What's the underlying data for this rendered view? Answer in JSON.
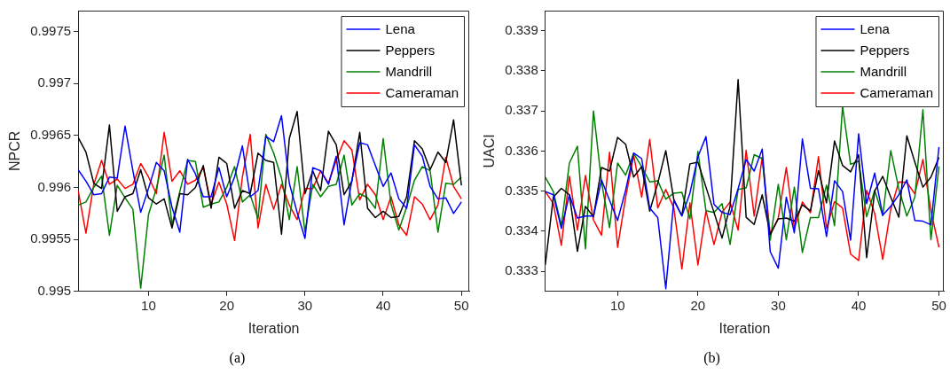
{
  "chart_data": [
    {
      "type": "line",
      "xlabel": "Iteration",
      "ylabel": "NPCR",
      "annotations": [
        "(a)"
      ],
      "legend": "top right",
      "grid": false,
      "x": [
        1,
        2,
        3,
        4,
        5,
        6,
        7,
        8,
        9,
        10,
        11,
        12,
        13,
        14,
        15,
        16,
        17,
        18,
        19,
        20,
        21,
        22,
        23,
        24,
        25,
        26,
        27,
        28,
        29,
        30,
        31,
        32,
        33,
        34,
        35,
        36,
        37,
        38,
        39,
        40,
        41,
        42,
        43,
        44,
        45,
        46,
        47,
        48,
        49,
        50
      ],
      "xlim": [
        1,
        51
      ],
      "xticks": [
        10,
        20,
        30,
        40,
        50
      ],
      "ylim": [
        0.995,
        0.9977
      ],
      "yticks": [
        0.995,
        0.9955,
        0.996,
        0.9965,
        0.997,
        0.9975
      ],
      "series": [
        {
          "name": "Lena",
          "color": "#0000ff",
          "values": [
            0.99617,
            0.99606,
            0.99593,
            0.99594,
            0.9961,
            0.99609,
            0.99659,
            0.99616,
            0.99576,
            0.99599,
            0.99624,
            0.99616,
            0.99581,
            0.99557,
            0.99627,
            0.99613,
            0.99591,
            0.99591,
            0.99619,
            0.99591,
            0.9961,
            0.9964,
            0.99591,
            0.99597,
            0.99649,
            0.99644,
            0.99669,
            0.99604,
            0.99576,
            0.99551,
            0.99619,
            0.99616,
            0.99603,
            0.9963,
            0.99564,
            0.99607,
            0.99643,
            0.99641,
            0.99621,
            0.99601,
            0.99614,
            0.99589,
            0.9958,
            0.99641,
            0.9963,
            0.99601,
            0.99589,
            0.9959,
            0.99575,
            0.99586
          ]
        },
        {
          "name": "Peppers",
          "color": "#000000",
          "values": [
            0.99648,
            0.99634,
            0.99604,
            0.99599,
            0.9966,
            0.99577,
            0.99591,
            0.99594,
            0.99617,
            0.9959,
            0.99584,
            0.99589,
            0.99561,
            0.99594,
            0.99593,
            0.996,
            0.99621,
            0.9958,
            0.99629,
            0.99623,
            0.9958,
            0.99597,
            0.99594,
            0.99633,
            0.99626,
            0.99624,
            0.99555,
            0.99647,
            0.99673,
            0.99594,
            0.99616,
            0.99597,
            0.99654,
            0.99641,
            0.99593,
            0.99606,
            0.99653,
            0.9958,
            0.99571,
            0.99577,
            0.99571,
            0.99572,
            0.99591,
            0.99645,
            0.99637,
            0.99617,
            0.99634,
            0.99624,
            0.99665,
            0.99602
          ]
        },
        {
          "name": "Mandrill",
          "color": "#008000",
          "values": [
            0.99583,
            0.99586,
            0.996,
            0.99611,
            0.99554,
            0.99602,
            0.9959,
            0.99579,
            0.99503,
            0.99574,
            0.99599,
            0.99631,
            0.99564,
            0.99596,
            0.99626,
            0.99625,
            0.99581,
            0.99584,
            0.99586,
            0.996,
            0.9962,
            0.99586,
            0.99593,
            0.9957,
            0.99651,
            0.99633,
            0.99609,
            0.99569,
            0.9962,
            0.99557,
            0.99603,
            0.99591,
            0.99601,
            0.99603,
            0.99631,
            0.99583,
            0.99594,
            0.9959,
            0.9958,
            0.99647,
            0.99584,
            0.99559,
            0.99581,
            0.99607,
            0.9962,
            0.99616,
            0.99557,
            0.99604,
            0.99603,
            0.9961
          ]
        },
        {
          "name": "Cameraman",
          "color": "#ff0000",
          "values": [
            0.99597,
            0.99556,
            0.99603,
            0.99626,
            0.99603,
            0.99608,
            0.99599,
            0.99603,
            0.99623,
            0.9961,
            0.99594,
            0.99653,
            0.99606,
            0.99616,
            0.99603,
            0.99607,
            0.99619,
            0.99584,
            0.99605,
            0.99584,
            0.99549,
            0.9961,
            0.99651,
            0.99561,
            0.99603,
            0.99579,
            0.99603,
            0.99583,
            0.99569,
            0.99599,
            0.99599,
            0.99616,
            0.99604,
            0.99626,
            0.99645,
            0.99636,
            0.99588,
            0.99603,
            0.99593,
            0.99569,
            0.99591,
            0.99564,
            0.99554,
            0.99591,
            0.99584,
            0.99569,
            0.99583,
            0.99629,
            0.99601,
            0.99589
          ]
        }
      ]
    },
    {
      "type": "line",
      "xlabel": "Iteration",
      "ylabel": "UACI",
      "annotations": [
        "(b)"
      ],
      "legend": "top right",
      "grid": false,
      "x": [
        1,
        2,
        3,
        4,
        5,
        6,
        7,
        8,
        9,
        10,
        11,
        12,
        13,
        14,
        15,
        16,
        17,
        18,
        19,
        20,
        21,
        22,
        23,
        24,
        25,
        26,
        27,
        28,
        29,
        30,
        31,
        32,
        33,
        34,
        35,
        36,
        37,
        38,
        39,
        40,
        41,
        42,
        43,
        44,
        45,
        46,
        47,
        48,
        49,
        50
      ],
      "xlim": [
        1,
        50.6
      ],
      "xticks": [
        10,
        20,
        30,
        40,
        50
      ],
      "ylim": [
        0.3325,
        0.3395
      ],
      "yticks": [
        0.333,
        0.334,
        0.335,
        0.336,
        0.337,
        0.338,
        0.339
      ],
      "series": [
        {
          "name": "Lena",
          "color": "#0000ff",
          "values": [
            0.33499,
            0.33491,
            0.33407,
            0.33491,
            0.33433,
            0.33438,
            0.33438,
            0.33528,
            0.33477,
            0.33427,
            0.33502,
            0.33595,
            0.33581,
            0.33458,
            0.33434,
            0.33257,
            0.33477,
            0.33438,
            0.33495,
            0.33586,
            0.33636,
            0.33467,
            0.33447,
            0.33442,
            0.33506,
            0.33579,
            0.3355,
            0.33605,
            0.33349,
            0.33308,
            0.33485,
            0.33396,
            0.3363,
            0.33507,
            0.33506,
            0.33387,
            0.33526,
            0.33499,
            0.33378,
            0.33643,
            0.33469,
            0.33545,
            0.3344,
            0.33462,
            0.33491,
            0.33528,
            0.33427,
            0.33425,
            0.33416,
            0.3361
          ]
        },
        {
          "name": "Peppers",
          "color": "#000000",
          "values": [
            0.33316,
            0.33485,
            0.33507,
            0.33491,
            0.3335,
            0.33462,
            0.33436,
            0.33559,
            0.3355,
            0.33634,
            0.33617,
            0.33535,
            0.33561,
            0.3345,
            0.3352,
            0.33601,
            0.33479,
            0.33439,
            0.33568,
            0.33572,
            0.3351,
            0.33447,
            0.33383,
            0.33462,
            0.33778,
            0.33435,
            0.33417,
            0.33491,
            0.33392,
            0.33431,
            0.33433,
            0.33425,
            0.33466,
            0.33451,
            0.33551,
            0.33471,
            0.33625,
            0.33564,
            0.33548,
            0.33591,
            0.33334,
            0.335,
            0.33537,
            0.33485,
            0.33435,
            0.33638,
            0.33572,
            0.3351,
            0.33535,
            0.33584
          ]
        },
        {
          "name": "Mandrill",
          "color": "#008000",
          "values": [
            0.33535,
            0.33499,
            0.33414,
            0.3357,
            0.33612,
            0.33356,
            0.337,
            0.33523,
            0.33409,
            0.3357,
            0.3354,
            0.33594,
            0.33561,
            0.33523,
            0.33526,
            0.3348,
            0.33495,
            0.33497,
            0.33431,
            0.33599,
            0.33451,
            0.33447,
            0.33469,
            0.33367,
            0.33504,
            0.33508,
            0.33591,
            0.33581,
            0.33378,
            0.33517,
            0.33379,
            0.3351,
            0.33347,
            0.33434,
            0.33434,
            0.33515,
            0.33414,
            0.33711,
            0.33567,
            0.33575,
            0.33436,
            0.33502,
            0.33439,
            0.33601,
            0.33506,
            0.33438,
            0.33485,
            0.33703,
            0.33379,
            0.33562
          ]
        },
        {
          "name": "Cameraman",
          "color": "#ff0000",
          "values": [
            0.33499,
            0.33469,
            0.33365,
            0.33537,
            0.33403,
            0.33539,
            0.33428,
            0.3339,
            0.33597,
            0.3336,
            0.33484,
            0.33589,
            0.33485,
            0.33629,
            0.33458,
            0.33504,
            0.33458,
            0.33306,
            0.33471,
            0.33316,
            0.33451,
            0.33367,
            0.33447,
            0.33473,
            0.33403,
            0.33602,
            0.33438,
            0.33585,
            0.33392,
            0.33433,
            0.33559,
            0.33406,
            0.33473,
            0.33446,
            0.33586,
            0.33407,
            0.33474,
            0.33458,
            0.33343,
            0.33327,
            0.33502,
            0.33444,
            0.3333,
            0.33455,
            0.33523,
            0.33522,
            0.33493,
            0.33579,
            0.33451,
            0.3336
          ]
        }
      ]
    }
  ]
}
